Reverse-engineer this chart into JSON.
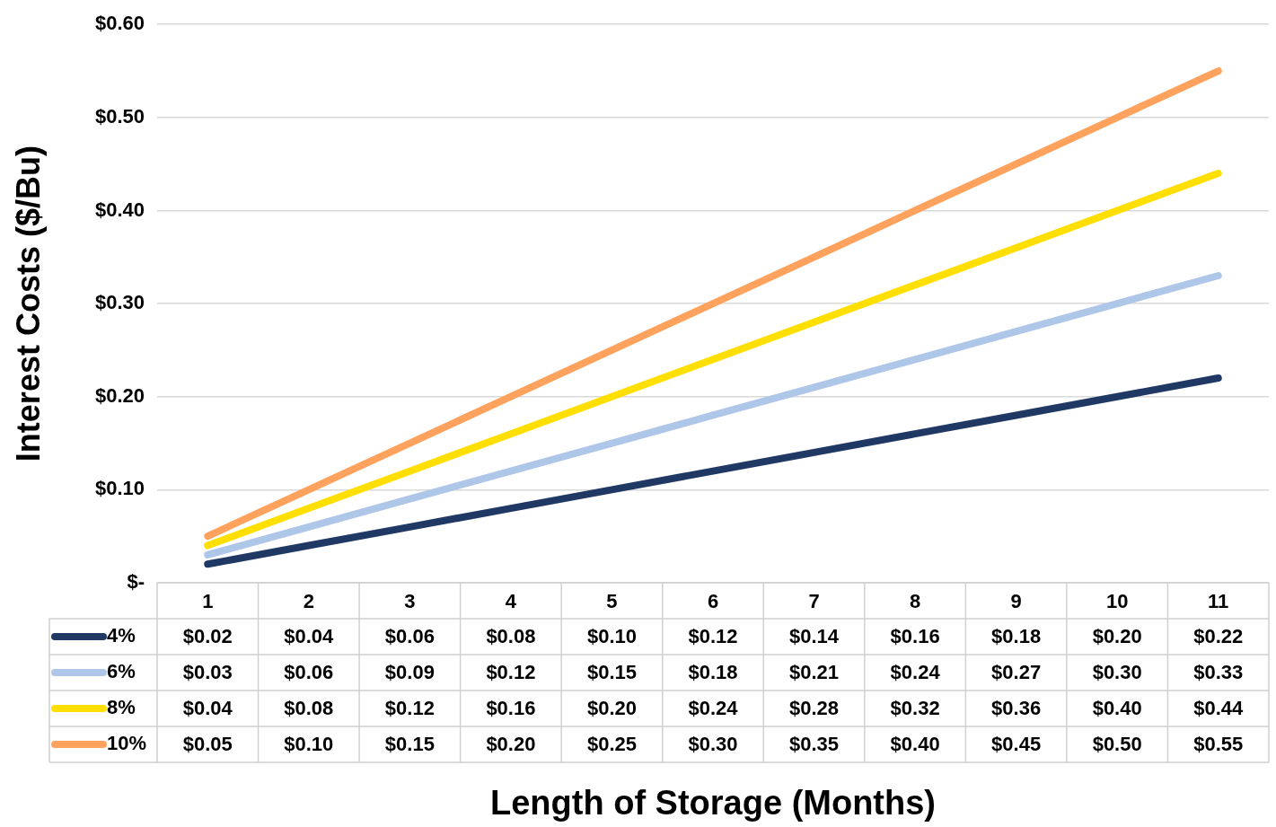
{
  "chart_data": {
    "type": "line",
    "annotations": [
      "Length of Storage (Months)"
    ],
    "ylabel": "Interest Costs ($/Bu)",
    "categories": [
      "1",
      "2",
      "3",
      "4",
      "5",
      "6",
      "7",
      "8",
      "9",
      "10",
      "11"
    ],
    "ylim": [
      0,
      0.6
    ],
    "yticks": [
      {
        "value": 0,
        "label": "$-"
      },
      {
        "value": 0.1,
        "label": "$0.10"
      },
      {
        "value": 0.2,
        "label": "$0.20"
      },
      {
        "value": 0.3,
        "label": "$0.30"
      },
      {
        "value": 0.4,
        "label": "$0.40"
      },
      {
        "value": 0.5,
        "label": "$0.50"
      },
      {
        "value": 0.6,
        "label": "$0.60"
      }
    ],
    "grid": "y",
    "legend": "bottom left",
    "marker": "none",
    "line_style": "solid",
    "series": [
      {
        "name": "4%",
        "color": "#1f3864",
        "values": [
          0.02,
          0.04,
          0.06,
          0.08,
          0.1,
          0.12,
          0.14,
          0.16,
          0.18,
          0.2,
          0.22
        ],
        "value_labels": [
          "$0.02",
          "$0.04",
          "$0.06",
          "$0.08",
          "$0.10",
          "$0.12",
          "$0.14",
          "$0.16",
          "$0.18",
          "$0.20",
          "$0.22"
        ]
      },
      {
        "name": "6%",
        "color": "#aec6e8",
        "values": [
          0.03,
          0.06,
          0.09,
          0.12,
          0.15,
          0.18,
          0.21,
          0.24,
          0.27,
          0.3,
          0.33
        ],
        "value_labels": [
          "$0.03",
          "$0.06",
          "$0.09",
          "$0.12",
          "$0.15",
          "$0.18",
          "$0.21",
          "$0.24",
          "$0.27",
          "$0.30",
          "$0.33"
        ]
      },
      {
        "name": "8%",
        "color": "#ffdf00",
        "values": [
          0.04,
          0.08,
          0.12,
          0.16,
          0.2,
          0.24,
          0.28,
          0.32,
          0.36,
          0.4,
          0.44
        ],
        "value_labels": [
          "$0.04",
          "$0.08",
          "$0.12",
          "$0.16",
          "$0.20",
          "$0.24",
          "$0.28",
          "$0.32",
          "$0.36",
          "$0.40",
          "$0.44"
        ]
      },
      {
        "name": "10%",
        "color": "#ffa25e",
        "values": [
          0.05,
          0.1,
          0.15,
          0.2,
          0.25,
          0.3,
          0.35,
          0.4,
          0.45,
          0.5,
          0.55
        ],
        "value_labels": [
          "$0.05",
          "$0.10",
          "$0.15",
          "$0.20",
          "$0.25",
          "$0.30",
          "$0.35",
          "$0.40",
          "$0.45",
          "$0.50",
          "$0.55"
        ]
      }
    ]
  }
}
